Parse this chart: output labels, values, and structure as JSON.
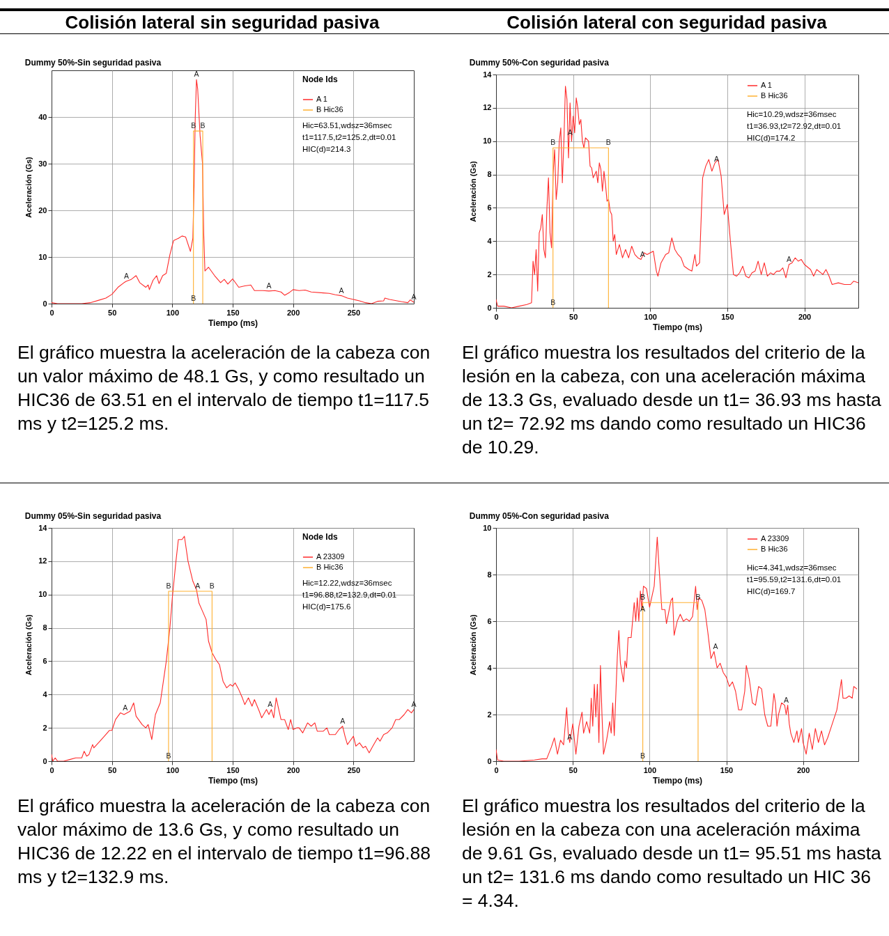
{
  "chart_data": [
    {
      "type": "line",
      "subtitle": "Colisión lateral sin seguridad pasiva",
      "title": "Dummy 50%-Sin seguridad pasiva",
      "xlabel": "Tiempo (ms)",
      "ylabel": "Aceleración (Gs)",
      "legend_title": "Node Ids",
      "legend": "top right",
      "grid": true,
      "xlim": [
        0,
        300
      ],
      "xticks": [
        0,
        50,
        100,
        150,
        200,
        250
      ],
      "ylim": [
        0,
        50
      ],
      "yticks": [
        0,
        10,
        20,
        30,
        40
      ],
      "series": [
        {
          "name": "A 1",
          "color": "#ff2a2a",
          "x": [
            0,
            5,
            15,
            25,
            32,
            40,
            45,
            50,
            55,
            60,
            62,
            66,
            70,
            73,
            78,
            80,
            81,
            84,
            87,
            89,
            92,
            95,
            98,
            101,
            105,
            108,
            111,
            115,
            117,
            118,
            119,
            120,
            121,
            123,
            125,
            126,
            127,
            130,
            135,
            140,
            143,
            146,
            150,
            155,
            160,
            165,
            168,
            175,
            180,
            185,
            190,
            193,
            197,
            200,
            205,
            210,
            215,
            225,
            230,
            235,
            240,
            245,
            250,
            255,
            260,
            265,
            270,
            275,
            276,
            280,
            290,
            295,
            297,
            300
          ],
          "values": [
            0.2,
            0,
            0,
            0,
            0.2,
            0.8,
            1.2,
            2,
            3.5,
            4.5,
            4.8,
            5.2,
            6,
            4.5,
            3.5,
            4,
            3,
            5,
            6,
            4.3,
            6,
            6.5,
            10.5,
            13.5,
            14,
            14.5,
            14.3,
            11.2,
            14,
            25,
            40,
            48,
            46,
            36,
            30,
            15,
            7,
            7.8,
            6,
            4.5,
            5.2,
            4.2,
            5.3,
            3.5,
            3.8,
            4,
            2.8,
            2.8,
            2.7,
            2.8,
            2.5,
            1.8,
            2.4,
            3,
            2.8,
            2.9,
            2.5,
            2.3,
            2.2,
            1.9,
            1.7,
            1.2,
            0.9,
            0.6,
            0.2,
            0,
            0.5,
            0.6,
            1.2,
            0.9,
            0.4,
            0.2,
            0.8,
            0.3
          ]
        },
        {
          "name": "B Hic36",
          "color": "#ffb030",
          "x": [
            117.5,
            117.5,
            125.2,
            125.2
          ],
          "values": [
            0,
            37,
            37,
            0
          ]
        }
      ],
      "annotations": [
        "Hic=63.51,wdsz=36msec",
        "t1=117.5,t2=125.2,dt=0.01",
        "HIC(d)=214.3",
        {
          "text": "A",
          "x": 62,
          "y": 4.8
        },
        {
          "text": "A",
          "x": 120,
          "y": 48
        },
        {
          "text": "A",
          "x": 180,
          "y": 2.7
        },
        {
          "text": "A",
          "x": 240,
          "y": 1.7
        },
        {
          "text": "A",
          "x": 300,
          "y": 0.3
        },
        {
          "text": "B",
          "x": 117.5,
          "y": 37
        },
        {
          "text": "B",
          "x": 125.2,
          "y": 37
        },
        {
          "text": "B",
          "x": 117.5,
          "y": 0
        },
        "El gráfico muestra la aceleración de la cabeza con un valor máximo de 48.1 Gs, y como resultado un HIC36 de 63.51 en el intervalo de tiempo t1=117.5 ms y t2=125.2 ms."
      ]
    },
    {
      "type": "line",
      "subtitle": "Colisión lateral con seguridad pasiva",
      "title": "Dummy 50%-Con seguridad pasiva",
      "xlabel": "Tiempo (ms)",
      "ylabel": "Aceleración (Gs)",
      "legend": "top right",
      "grid": true,
      "xlim": [
        0,
        235
      ],
      "xticks": [
        0,
        50,
        100,
        150,
        200
      ],
      "ylim": [
        0,
        14
      ],
      "yticks": [
        0,
        2,
        4,
        6,
        8,
        10,
        12,
        14
      ],
      "series": [
        {
          "name": "A 1",
          "color": "#ff2a2a",
          "x": [
            0,
            1,
            5,
            10,
            15,
            20,
            23,
            24,
            25,
            26,
            27,
            28,
            29,
            30,
            31,
            32,
            33,
            34,
            35,
            36,
            37,
            38,
            39,
            40,
            41,
            42,
            43,
            44,
            45,
            46,
            47,
            48,
            49,
            50,
            51,
            52,
            53,
            54,
            55,
            56,
            57,
            58,
            60,
            61,
            62,
            63,
            65,
            66,
            67,
            68,
            69,
            70,
            71,
            72,
            73,
            74,
            75,
            76,
            77,
            78,
            80,
            82,
            84,
            86,
            88,
            90,
            92,
            94,
            96,
            98,
            100,
            102,
            104,
            105,
            107,
            110,
            112,
            114,
            116,
            118,
            120,
            122,
            125,
            127,
            129,
            130,
            132,
            134,
            136,
            138,
            140,
            142,
            144,
            146,
            148,
            150,
            152,
            154,
            156,
            158,
            160,
            162,
            164,
            166,
            168,
            170,
            172,
            174,
            176,
            178,
            180,
            182,
            184,
            186,
            188,
            190,
            192,
            194,
            196,
            198,
            200,
            204,
            206,
            208,
            212,
            214,
            216,
            218,
            222,
            226,
            230,
            232,
            235
          ],
          "values": [
            0.5,
            0.1,
            0.1,
            0,
            0.1,
            0.2,
            0.3,
            2.8,
            2,
            3.5,
            1,
            4.5,
            4.8,
            5.6,
            3.5,
            3,
            6,
            7.8,
            4.5,
            3.6,
            8,
            9.5,
            6.5,
            7.5,
            10,
            10.8,
            7.5,
            10,
            13.3,
            12.5,
            9,
            12.3,
            10,
            11.5,
            10.5,
            12.6,
            12,
            11,
            11.3,
            10,
            9.6,
            10.2,
            10,
            8.5,
            8.4,
            7.8,
            8.2,
            7.5,
            8.7,
            8.3,
            7,
            8.2,
            7.4,
            6.4,
            6.5,
            5.8,
            5.6,
            4,
            4.4,
            3.2,
            3.8,
            3,
            3.5,
            3,
            3.7,
            3.2,
            3,
            2.9,
            3.3,
            3.2,
            3.3,
            3.4,
            2.2,
            1.9,
            2.7,
            3.2,
            3.3,
            4.2,
            3.5,
            3.2,
            3,
            2.5,
            2.3,
            2.2,
            3.2,
            2.5,
            2.7,
            7.8,
            8.5,
            8.9,
            8.2,
            8.7,
            8.9,
            7.9,
            5.6,
            6.2,
            4,
            2,
            1.9,
            2.1,
            2.5,
            1.9,
            1.8,
            2.1,
            2.2,
            2.8,
            2,
            2.7,
            1.9,
            2.1,
            2,
            2.2,
            2.2,
            2.4,
            1.8,
            2.6,
            2.7,
            3,
            2.8,
            2.9,
            2.6,
            2.3,
            1.9,
            2.3,
            2,
            2.3,
            1.9,
            1.4,
            1.5,
            1.4,
            1.4,
            1.6,
            1.5
          ]
        },
        {
          "name": "B Hic36",
          "color": "#ffb030",
          "x": [
            36.93,
            36.93,
            72.92,
            72.92
          ],
          "values": [
            0,
            9.6,
            9.6,
            0
          ]
        }
      ],
      "annotations": [
        "Hic=10.29,wdsz=36msec",
        "t1=36.93,t2=72.92,dt=0.01",
        "HIC(d)=174.2",
        {
          "text": "A",
          "x": 48,
          "y": 10.2
        },
        {
          "text": "A",
          "x": 95,
          "y": 2.9
        },
        {
          "text": "A",
          "x": 143,
          "y": 8.6
        },
        {
          "text": "A",
          "x": 190,
          "y": 2.6
        },
        {
          "text": "B",
          "x": 36.93,
          "y": 9.6
        },
        {
          "text": "B",
          "x": 72.92,
          "y": 9.6
        },
        {
          "text": "B",
          "x": 36.93,
          "y": 0
        },
        "El gráfico muestra los resultados del criterio de la lesión en la cabeza, con una aceleración máxima de 13.3 Gs, evaluado desde un t1= 36.93 ms hasta un t2= 72.92 ms dando como resultado un HIC36 de 10.29."
      ]
    },
    {
      "type": "line",
      "title": "Dummy 05%-Sin seguridad pasiva",
      "xlabel": "Tiempo (ms)",
      "ylabel": "Aceleración (Gs)",
      "legend_title": "Node Ids",
      "legend": "top right",
      "grid": true,
      "xlim": [
        0,
        300
      ],
      "xticks": [
        0,
        50,
        100,
        150,
        200,
        250
      ],
      "ylim": [
        0,
        14
      ],
      "yticks": [
        0,
        2,
        4,
        6,
        8,
        10,
        12,
        14
      ],
      "series": [
        {
          "name": "A 23309",
          "color": "#ff2a2a",
          "x": [
            0,
            1,
            3,
            5,
            10,
            15,
            20,
            25,
            27,
            29,
            31,
            34,
            35,
            40,
            45,
            48,
            50,
            53,
            57,
            60,
            65,
            68,
            70,
            75,
            78,
            80,
            83,
            86,
            90,
            95,
            98,
            100,
            103,
            105,
            108,
            110,
            113,
            117,
            120,
            122,
            125,
            128,
            130,
            133,
            136,
            139,
            142,
            145,
            148,
            150,
            152,
            155,
            158,
            160,
            163,
            166,
            168,
            172,
            174,
            178,
            180,
            182,
            184,
            186,
            190,
            193,
            196,
            198,
            200,
            203,
            205,
            208,
            212,
            215,
            218,
            220,
            225,
            228,
            230,
            235,
            238,
            241,
            243,
            245,
            247,
            250,
            252,
            255,
            258,
            260,
            263,
            266,
            270,
            272,
            275,
            278,
            282,
            285,
            288,
            292,
            295,
            298,
            300
          ],
          "values": [
            0.4,
            0,
            0.2,
            0,
            0,
            0.1,
            0.2,
            0.2,
            0.6,
            0.3,
            0.4,
            1,
            0.8,
            1.2,
            1.6,
            1.85,
            1.85,
            2.5,
            2.9,
            2.8,
            3,
            3.5,
            2.7,
            2.2,
            2,
            2.2,
            1.3,
            2.8,
            3.5,
            6,
            8,
            9.8,
            12,
            13.3,
            13.3,
            13.5,
            12,
            10.8,
            10.3,
            9.5,
            9,
            8.5,
            7.2,
            6.5,
            6.1,
            5.8,
            4.8,
            4.4,
            4.6,
            4.5,
            4.7,
            4.3,
            3.8,
            3.4,
            3.8,
            3.3,
            3.7,
            3,
            2.6,
            3.1,
            2.8,
            3.1,
            2.6,
            3.8,
            2.5,
            2.5,
            1.9,
            2.5,
            1.9,
            2,
            2,
            1.7,
            2.3,
            2.1,
            2.3,
            1.8,
            1.8,
            2,
            1.6,
            1.6,
            1.9,
            2.1,
            1.5,
            1,
            1.2,
            1.5,
            0.9,
            1.1,
            0.8,
            0.9,
            0.5,
            0.9,
            1.4,
            1.2,
            1.6,
            1.7,
            2,
            2.5,
            2.5,
            2.8,
            3.1,
            2.9,
            3.1
          ]
        },
        {
          "name": "B Hic36",
          "color": "#ffb030",
          "x": [
            96.88,
            96.88,
            132.9,
            132.9
          ],
          "values": [
            0,
            10.2,
            10.2,
            0
          ]
        }
      ],
      "annotations": [
        "Hic=12.22,wdsz=36msec",
        "t1=96.88,t2=132.9,dt=0.01",
        "HIC(d)=175.6",
        {
          "text": "A",
          "x": 61,
          "y": 2.9
        },
        {
          "text": "A",
          "x": 121,
          "y": 10.2
        },
        {
          "text": "A",
          "x": 181,
          "y": 3.1
        },
        {
          "text": "A",
          "x": 241,
          "y": 2.1
        },
        {
          "text": "A",
          "x": 300,
          "y": 3.1
        },
        {
          "text": "B",
          "x": 96.88,
          "y": 10.2
        },
        {
          "text": "B",
          "x": 132.9,
          "y": 10.2
        },
        {
          "text": "B",
          "x": 96.88,
          "y": 0
        },
        "El gráfico muestra la aceleración de la cabeza con valor máximo de 13.6 Gs, y como resultado un HIC36 de 12.22 en el intervalo de tiempo t1=96.88 ms y t2=132.9 ms."
      ]
    },
    {
      "type": "line",
      "title": "Dummy 05%-Con seguridad pasiva",
      "xlabel": "Tiempo (ms)",
      "ylabel": "Aceleración (Gs)",
      "legend": "top right",
      "grid": true,
      "xlim": [
        0,
        236
      ],
      "xticks": [
        0,
        50,
        100,
        150,
        200
      ],
      "ylim": [
        0,
        10
      ],
      "yticks": [
        0,
        2,
        4,
        6,
        8,
        10
      ],
      "series": [
        {
          "name": "A 23309",
          "color": "#ff2a2a",
          "x": [
            0,
            1,
            5,
            15,
            25,
            30,
            33,
            36,
            38,
            40,
            42,
            44,
            45,
            46,
            47,
            48,
            50,
            52,
            54,
            56,
            57,
            59,
            61,
            62,
            63,
            64,
            65,
            66,
            67,
            68,
            69,
            70,
            72,
            74,
            75,
            76,
            77,
            79,
            80,
            81,
            83,
            84,
            85,
            86,
            88,
            90,
            91,
            92,
            93,
            94,
            95,
            96,
            98,
            100,
            101,
            103,
            105,
            106,
            108,
            110,
            111,
            114,
            115,
            116,
            118,
            120,
            122,
            124,
            126,
            128,
            130,
            131,
            132,
            134,
            136,
            138,
            140,
            142,
            144,
            146,
            148,
            150,
            152,
            154,
            156,
            158,
            160,
            162,
            163,
            165,
            167,
            169,
            171,
            173,
            175,
            177,
            179,
            181,
            182,
            183,
            184,
            186,
            188,
            189,
            190,
            191,
            192,
            194,
            196,
            197,
            199,
            200,
            202,
            204,
            206,
            208,
            210,
            212,
            214,
            216,
            218,
            220,
            222,
            225,
            226,
            228,
            230,
            232,
            233,
            235
          ],
          "values": [
            0.5,
            0.05,
            0,
            0,
            0.05,
            0.1,
            0.1,
            0.6,
            1,
            0.3,
            0.9,
            0.7,
            1.5,
            2.3,
            1.2,
            0.8,
            1.6,
            0.3,
            1.5,
            2.1,
            1.2,
            1.7,
            1.2,
            2.7,
            1.5,
            3.3,
            1.9,
            3.3,
            0.8,
            4.1,
            2,
            0.3,
            0.9,
            1.7,
            1.2,
            2.5,
            1.1,
            4.5,
            5.6,
            4.2,
            3.4,
            4.3,
            4,
            5.3,
            5.3,
            6.8,
            6,
            7,
            6,
            7.3,
            6.5,
            7.5,
            7.4,
            6.6,
            6.9,
            7.5,
            9.6,
            8.5,
            6.5,
            6.5,
            5.9,
            6.9,
            7,
            5.4,
            6,
            6.3,
            6,
            6.1,
            6,
            6.2,
            7.5,
            6.5,
            7,
            6.9,
            6.5,
            5.5,
            4.4,
            4.7,
            4,
            4.2,
            3.8,
            3.6,
            3.2,
            3.4,
            3,
            2.2,
            2.2,
            3,
            4.1,
            3.5,
            2.5,
            2.4,
            3.2,
            3.1,
            2,
            1.5,
            1.5,
            2.9,
            2.5,
            1.5,
            2,
            2.5,
            2.4,
            2,
            2.4,
            1.6,
            1.2,
            0.8,
            1.3,
            0.8,
            1.4,
            0.8,
            0.3,
            1.2,
            0.5,
            1.4,
            0.8,
            1.3,
            0.7,
            1,
            1.4,
            1.8,
            2.2,
            3.5,
            2.7,
            2.7,
            2.8,
            2.7,
            3.2,
            3.1
          ]
        },
        {
          "name": "B Hic36",
          "color": "#ffb030",
          "x": [
            95.59,
            95.59,
            131.6,
            131.6
          ],
          "values": [
            0,
            6.8,
            6.8,
            0
          ]
        }
      ],
      "annotations": [
        "Hic=4.341,wdsz=36msec",
        "t1=95.59,t2=131.6,dt=0.01",
        "HIC(d)=169.7",
        {
          "text": "A",
          "x": 48,
          "y": 0.8
        },
        {
          "text": "A",
          "x": 95.59,
          "y": 6.3
        },
        {
          "text": "A",
          "x": 143,
          "y": 4.7
        },
        {
          "text": "A",
          "x": 189,
          "y": 2.4
        },
        {
          "text": "B",
          "x": 95.59,
          "y": 6.8
        },
        {
          "text": "B",
          "x": 131.6,
          "y": 6.8
        },
        {
          "text": "B",
          "x": 95.59,
          "y": 0
        },
        "El gráfico muestra los resultados del criterio de la lesión en la cabeza con una aceleración máxima de 9.61 Gs, evaluado desde un t1= 95.51 ms hasta un t2= 131.6 ms dando como resultado un HIC 36 = 4.34."
      ]
    }
  ]
}
